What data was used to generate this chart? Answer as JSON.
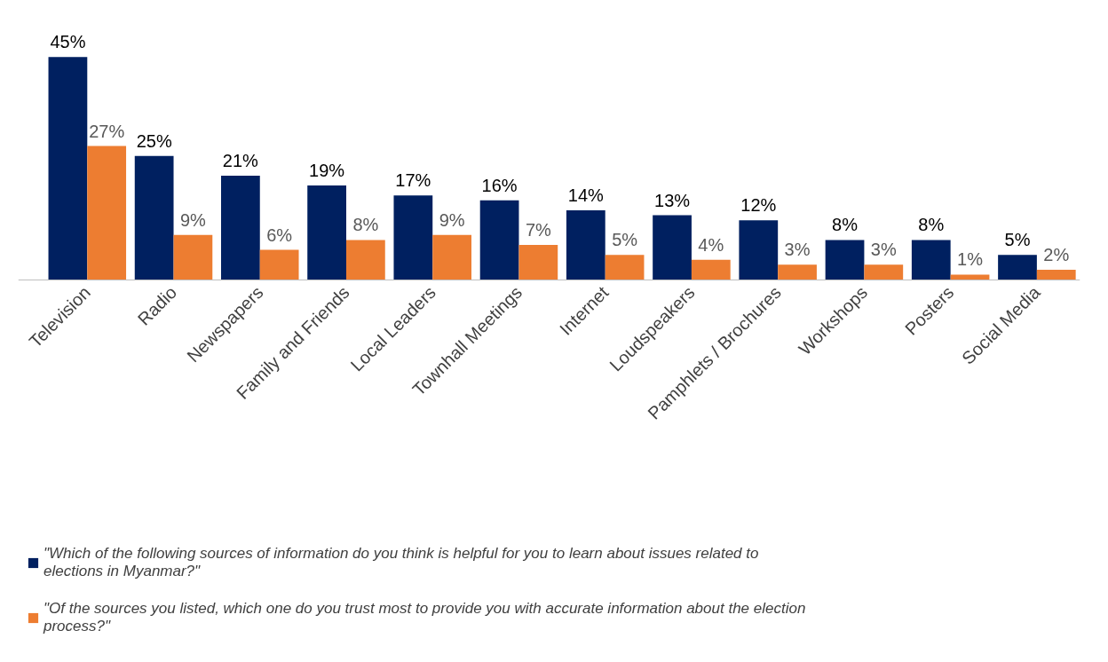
{
  "chart_data": {
    "type": "bar",
    "categories": [
      "Television",
      "Radio",
      "Newspapers",
      "Family and Friends",
      "Local Leaders",
      "Townhall Meetings",
      "Internet",
      "Loudspeakers",
      "Pamphlets / Brochures",
      "Workshops",
      "Posters",
      "Social Media"
    ],
    "series": [
      {
        "name": "\"Which of the following sources of information do you think is helpful for you to learn about issues related to elections in Myanmar?\"",
        "color": "#002060",
        "values": [
          45,
          25,
          21,
          19,
          17,
          16,
          14,
          13,
          12,
          8,
          8,
          5
        ],
        "value_labels": [
          "45%",
          "25%",
          "21%",
          "19%",
          "17%",
          "16%",
          "14%",
          "13%",
          "12%",
          "8%",
          "8%",
          "5%"
        ]
      },
      {
        "name": "\"Of the sources you listed, which one do you trust most to provide you with accurate information about the election process?\"",
        "color": "#ed7d31",
        "values": [
          27,
          9,
          6,
          8,
          9,
          7,
          5,
          4,
          3,
          3,
          1,
          2
        ],
        "value_labels": [
          "27%",
          "9%",
          "6%",
          "8%",
          "9%",
          "7%",
          "5%",
          "4%",
          "3%",
          "3%",
          "1%",
          "2%"
        ]
      }
    ],
    "legend": "bottom"
  }
}
